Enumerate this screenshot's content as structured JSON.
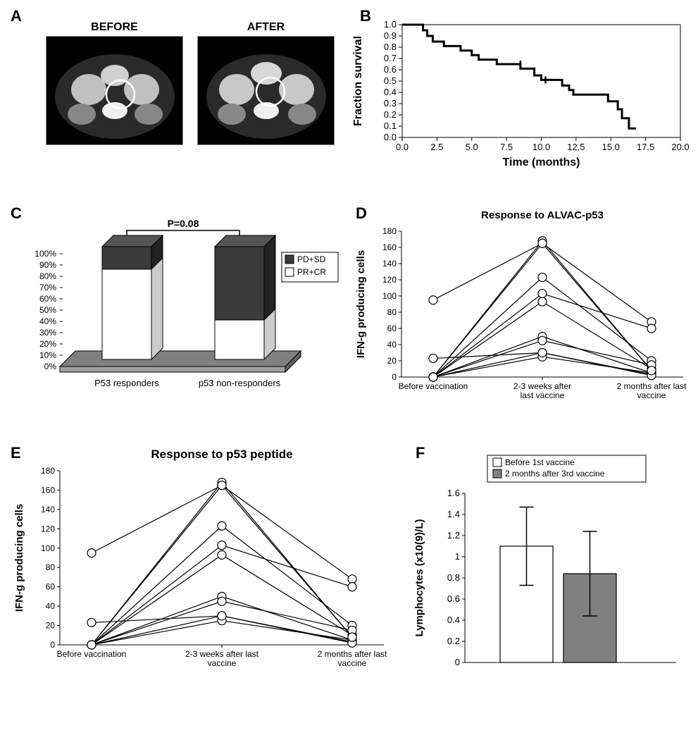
{
  "panelA": {
    "label": "A",
    "before_label": "BEFORE",
    "after_label": "AFTER"
  },
  "panelB": {
    "label": "B",
    "xlabel": "Time (months)",
    "ylabel": "Fraction survival",
    "xlim": [
      0,
      20
    ],
    "ylim": [
      0,
      1
    ],
    "xticks": [
      0.0,
      2.5,
      5.0,
      7.5,
      10.0,
      12.5,
      15.0,
      17.5,
      20.0
    ],
    "yticks": [
      0.0,
      0.1,
      0.2,
      0.3,
      0.4,
      0.5,
      0.6,
      0.7,
      0.8,
      0.9,
      1.0
    ],
    "line_color": "#000000",
    "line_width": 3,
    "background_color": "#ffffff",
    "km_steps": [
      [
        0.0,
        1.0
      ],
      [
        1.5,
        1.0
      ],
      [
        1.5,
        0.95
      ],
      [
        1.8,
        0.95
      ],
      [
        1.8,
        0.9
      ],
      [
        2.2,
        0.9
      ],
      [
        2.2,
        0.85
      ],
      [
        3.0,
        0.85
      ],
      [
        3.0,
        0.81
      ],
      [
        4.2,
        0.81
      ],
      [
        4.2,
        0.77
      ],
      [
        5.0,
        0.77
      ],
      [
        5.0,
        0.73
      ],
      [
        5.5,
        0.73
      ],
      [
        5.5,
        0.69
      ],
      [
        6.8,
        0.69
      ],
      [
        6.8,
        0.65
      ],
      [
        8.5,
        0.65
      ],
      [
        8.5,
        0.61
      ],
      [
        9.5,
        0.61
      ],
      [
        9.5,
        0.55
      ],
      [
        10.0,
        0.55
      ],
      [
        10.0,
        0.51
      ],
      [
        10.3,
        0.51
      ],
      [
        11.5,
        0.51
      ],
      [
        11.5,
        0.46
      ],
      [
        12.0,
        0.46
      ],
      [
        12.0,
        0.42
      ],
      [
        12.3,
        0.42
      ],
      [
        12.3,
        0.38
      ],
      [
        14.8,
        0.38
      ],
      [
        14.8,
        0.32
      ],
      [
        15.5,
        0.32
      ],
      [
        15.5,
        0.25
      ],
      [
        15.8,
        0.25
      ],
      [
        15.8,
        0.17
      ],
      [
        16.3,
        0.17
      ],
      [
        16.3,
        0.08
      ],
      [
        16.8,
        0.08
      ]
    ],
    "tick_marks": [
      [
        8.5,
        0.65
      ],
      [
        10.3,
        0.51
      ]
    ]
  },
  "panelC": {
    "label": "C",
    "pvalue": "P=0.08",
    "categories": [
      "P53 responders",
      "p53 non-responders"
    ],
    "legend": [
      "PD+SD",
      "PR+CR"
    ],
    "legend_colors": [
      "#3b3b3b",
      "#ffffff"
    ],
    "values_prcr": [
      80,
      35
    ],
    "values_pdsd": [
      20,
      65
    ],
    "ylim": [
      0,
      100
    ],
    "yticks": [
      0,
      10,
      20,
      30,
      40,
      50,
      60,
      70,
      80,
      90,
      100
    ],
    "bar_fill_bottom": "#ffffff",
    "bar_fill_top": "#3b3b3b",
    "bar_outline": "#000000",
    "floor_color": "#808080",
    "bar_width": 0.35
  },
  "panelD": {
    "label": "D",
    "title": "Response to ALVAC-p53",
    "ylabel": "IFN-g producing cells",
    "xticklabels": [
      "Before vaccination",
      "2-3 weeks after\nlast vaccine",
      "2 months after last\nvaccine"
    ],
    "ylim": [
      0,
      180
    ],
    "yticks": [
      0,
      20,
      40,
      60,
      80,
      100,
      120,
      140,
      160,
      180
    ],
    "line_color": "#000000",
    "marker_style": "circle-open",
    "marker_size": 6,
    "series": [
      [
        0,
        168,
        8
      ],
      [
        0,
        165,
        68
      ],
      [
        0,
        123,
        20
      ],
      [
        0,
        103,
        60
      ],
      [
        0,
        93,
        10
      ],
      [
        0,
        50,
        5
      ],
      [
        0,
        45,
        15
      ],
      [
        0,
        30,
        3
      ],
      [
        0,
        25,
        5
      ],
      [
        23,
        30,
        2
      ],
      [
        95,
        165,
        8
      ]
    ]
  },
  "panelE": {
    "label": "E",
    "title": "Response to p53 peptide",
    "ylabel": "IFN-g producing cells",
    "xticklabels": [
      "Before vaccination",
      "2-3 weeks after last\nvaccine",
      "2 months after last\nvaccine"
    ],
    "ylim": [
      0,
      180
    ],
    "yticks": [
      0,
      20,
      40,
      60,
      80,
      100,
      120,
      140,
      160,
      180
    ],
    "line_color": "#000000",
    "marker_style": "circle-open",
    "marker_size": 6,
    "series": [
      [
        0,
        168,
        8
      ],
      [
        0,
        165,
        68
      ],
      [
        0,
        123,
        20
      ],
      [
        0,
        103,
        60
      ],
      [
        0,
        93,
        10
      ],
      [
        0,
        50,
        5
      ],
      [
        0,
        45,
        15
      ],
      [
        0,
        30,
        3
      ],
      [
        0,
        25,
        5
      ],
      [
        23,
        30,
        2
      ],
      [
        95,
        165,
        8
      ]
    ]
  },
  "panelF": {
    "label": "F",
    "ylabel": "Lymphocytes (x10(9)/L)",
    "legend": [
      "Before 1st vaccine",
      "2 months after 3rd vaccine"
    ],
    "legend_colors": [
      "#ffffff",
      "#808080"
    ],
    "values": [
      1.1,
      0.84
    ],
    "errors": [
      0.37,
      0.4
    ],
    "ylim": [
      0,
      1.6
    ],
    "yticks": [
      0,
      0.2,
      0.4,
      0.6,
      0.8,
      1,
      1.2,
      1.4,
      1.6
    ],
    "bar_colors": [
      "#ffffff",
      "#808080"
    ],
    "bar_outline": "#000000",
    "error_color": "#000000",
    "bar_width": 0.3
  }
}
